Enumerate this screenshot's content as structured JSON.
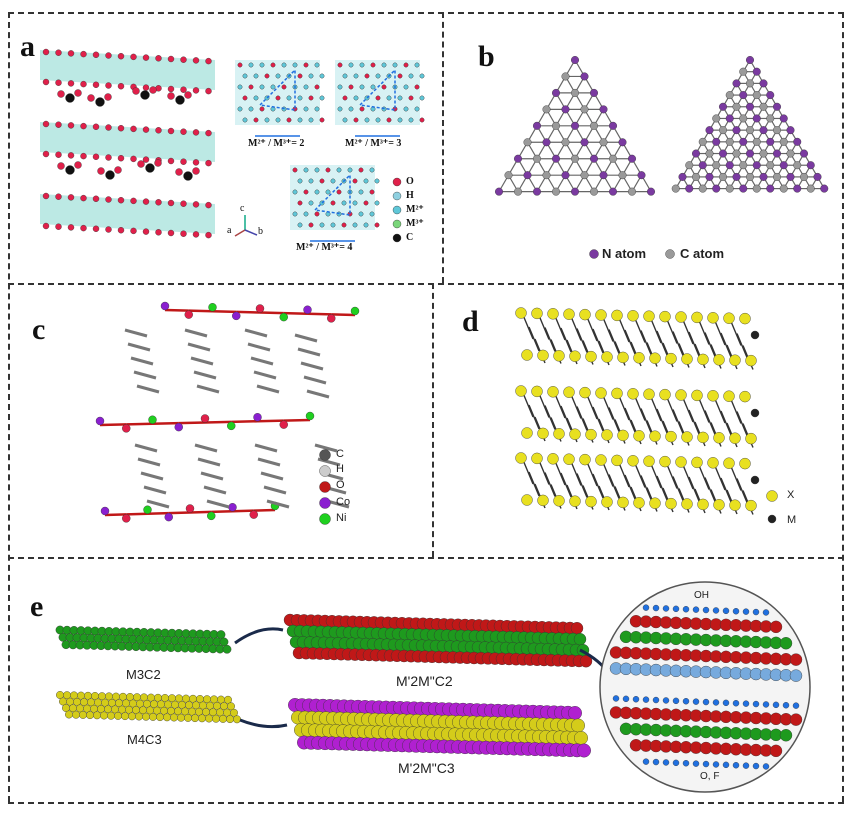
{
  "panels": {
    "a": {
      "label": "a",
      "ratios": [
        "M²⁺ / M³⁺= 2",
        "M²⁺ / M³⁺= 3",
        "M²⁺ / M³⁺= 4"
      ],
      "axes": {
        "c": "c",
        "a": "a",
        "b": "b"
      },
      "legend": [
        "O",
        "H",
        "M²⁺",
        "M³⁺",
        "C"
      ]
    },
    "b": {
      "label": "b",
      "legend": [
        "N atom",
        "C atom"
      ]
    },
    "c": {
      "label": "c",
      "legend": [
        "C",
        "H",
        "O",
        "Co",
        "Ni"
      ]
    },
    "d": {
      "label": "d",
      "legend": [
        "X",
        "M"
      ]
    },
    "e": {
      "label": "e",
      "m3c2": "M3C2",
      "m4c3": "M4C3",
      "mm2": "M'2M\"C2",
      "mm3": "M'2M\"C3",
      "oh": "OH",
      "of": "O, F"
    }
  },
  "colors": {
    "O": "#e0204a",
    "H": "#8fd0e0",
    "M2": "#5fc7d8",
    "M3": "#7ad67a",
    "C": "#111111",
    "N_purple": "#7a3aa0",
    "C_grey": "#9a9a9a",
    "Co": "#8a1fd0",
    "Ni": "#1fd01f",
    "X": "#e8e020",
    "M": "#222222",
    "red": "#c01818",
    "green": "#1e9a1e",
    "yellow": "#d4cc1a",
    "magenta": "#b020d0",
    "blue": "#2070e0"
  }
}
